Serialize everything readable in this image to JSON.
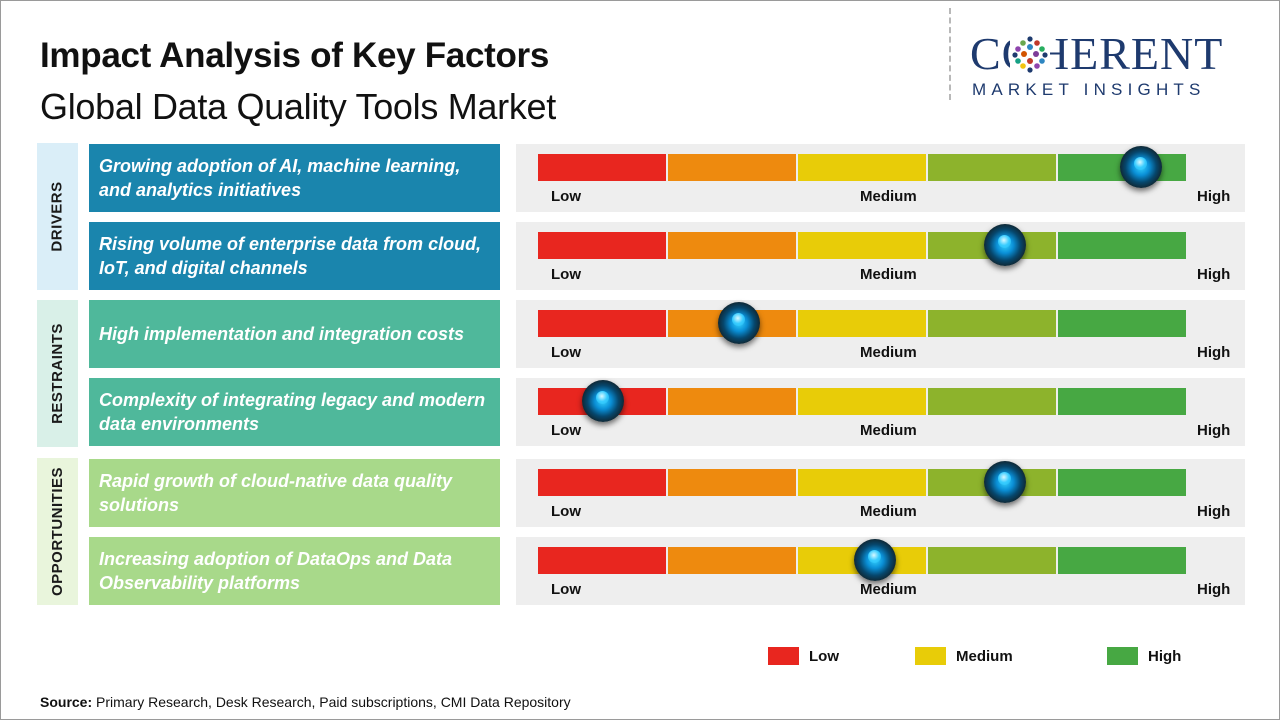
{
  "title": "Impact Analysis of Key Factors",
  "subtitle": "Global Data Quality Tools Market",
  "logo": {
    "line1": "COHERENT",
    "line2": "MARKET INSIGHTS"
  },
  "scale_labels": {
    "low": "Low",
    "medium": "Medium",
    "high": "High"
  },
  "colors": {
    "segments": [
      "#e8261f",
      "#ee8a0e",
      "#e8cc08",
      "#8db32c",
      "#47a843"
    ],
    "drivers_box": "#1a85ad",
    "restraints_box": "#4fb89b",
    "opportunities_box": "#a8d98a",
    "drivers_tab": "#daeef8",
    "restraints_tab": "#d9f0e8",
    "opportunities_tab": "#e9f5dc"
  },
  "categories": [
    {
      "label": "DRIVERS"
    },
    {
      "label": "RESTRAINTS"
    },
    {
      "label": "OPPORTUNITIES"
    }
  ],
  "legend": [
    {
      "label": "Low",
      "color": "#e8261f"
    },
    {
      "label": "Medium",
      "color": "#e8cc08"
    },
    {
      "label": "High",
      "color": "#47a843"
    }
  ],
  "source": {
    "label": "Source:",
    "text": "Primary Research, Desk Research, Paid subscriptions, CMI Data Repository"
  },
  "chart_data": {
    "type": "bar",
    "scale": [
      "Low",
      "Medium",
      "High"
    ],
    "xlim": [
      0,
      1
    ],
    "factors": [
      {
        "category": "DRIVERS",
        "text": "Growing adoption of AI, machine learning, and analytics initiatives",
        "impact": 0.93
      },
      {
        "category": "DRIVERS",
        "text": "Rising volume of enterprise data from cloud, IoT, and digital channels",
        "impact": 0.72
      },
      {
        "category": "RESTRAINTS",
        "text": "High implementation and integration costs",
        "impact": 0.31
      },
      {
        "category": "RESTRAINTS",
        "text": "Complexity of integrating legacy and modern data environments",
        "impact": 0.1
      },
      {
        "category": "OPPORTUNITIES",
        "text": "Rapid growth of cloud-native data quality solutions",
        "impact": 0.72
      },
      {
        "category": "OPPORTUNITIES",
        "text": "Increasing adoption of DataOps and Data Observability platforms",
        "impact": 0.52
      }
    ]
  }
}
